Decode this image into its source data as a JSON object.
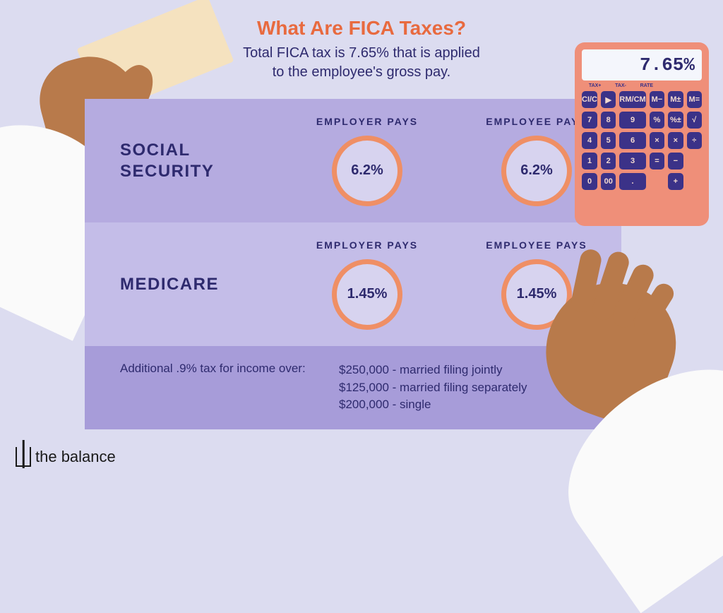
{
  "colors": {
    "page_bg": "#dcdcf0",
    "title": "#e86a3f",
    "text_primary": "#2e2a6e",
    "panel_row1_bg": "#b5abe0",
    "panel_row2_bg": "#c4bde8",
    "panel_footer_bg": "#a79cd9",
    "circle_border": "#ef8f65",
    "circle_fill": "#d7d3ef",
    "calculator_body": "#ef8f79",
    "calculator_btn": "#3b3288",
    "calculator_btn_text": "#f2d9cf",
    "calculator_screen_text": "#2e2a6e",
    "hand_skin": "#b87a4b",
    "sleeve": "#fafafa",
    "envelope": "#f5e2bf"
  },
  "title": "What Are FICA Taxes?",
  "subtitle_line1": "Total FICA tax is 7.65% that is applied",
  "subtitle_line2": "to the employee's gross pay.",
  "columns": {
    "employer": "EMPLOYER PAYS",
    "employee": "EMPLOYEE PAYS"
  },
  "rows": [
    {
      "label_line1": "SOCIAL",
      "label_line2": "SECURITY",
      "employer_pct": "6.2%",
      "employee_pct": "6.2%",
      "circle_border_width": 7
    },
    {
      "label_line1": "MEDICARE",
      "label_line2": "",
      "employer_pct": "1.45%",
      "employee_pct": "1.45%",
      "circle_border_width": 7
    }
  ],
  "footer": {
    "lead": "Additional .9% tax for income over:",
    "items": [
      "$250,000 - married filing jointly",
      "$125,000 - married filing separately",
      "$200,000 - single"
    ]
  },
  "calculator": {
    "display": "7.65%",
    "label_row": [
      "TAX+",
      "TAX-",
      "RATE",
      "",
      "",
      ""
    ],
    "buttons": [
      "CI/C",
      "▶",
      "RM/CM",
      "M−",
      "M±",
      "M=",
      "7",
      "8",
      "9",
      "%",
      "%±",
      "√",
      "4",
      "5",
      "6",
      "×",
      "×",
      "÷",
      "1",
      "2",
      "3",
      "=",
      "−",
      "",
      "0",
      "00",
      ".",
      "",
      "+",
      ""
    ]
  },
  "logo_text": "the balance"
}
